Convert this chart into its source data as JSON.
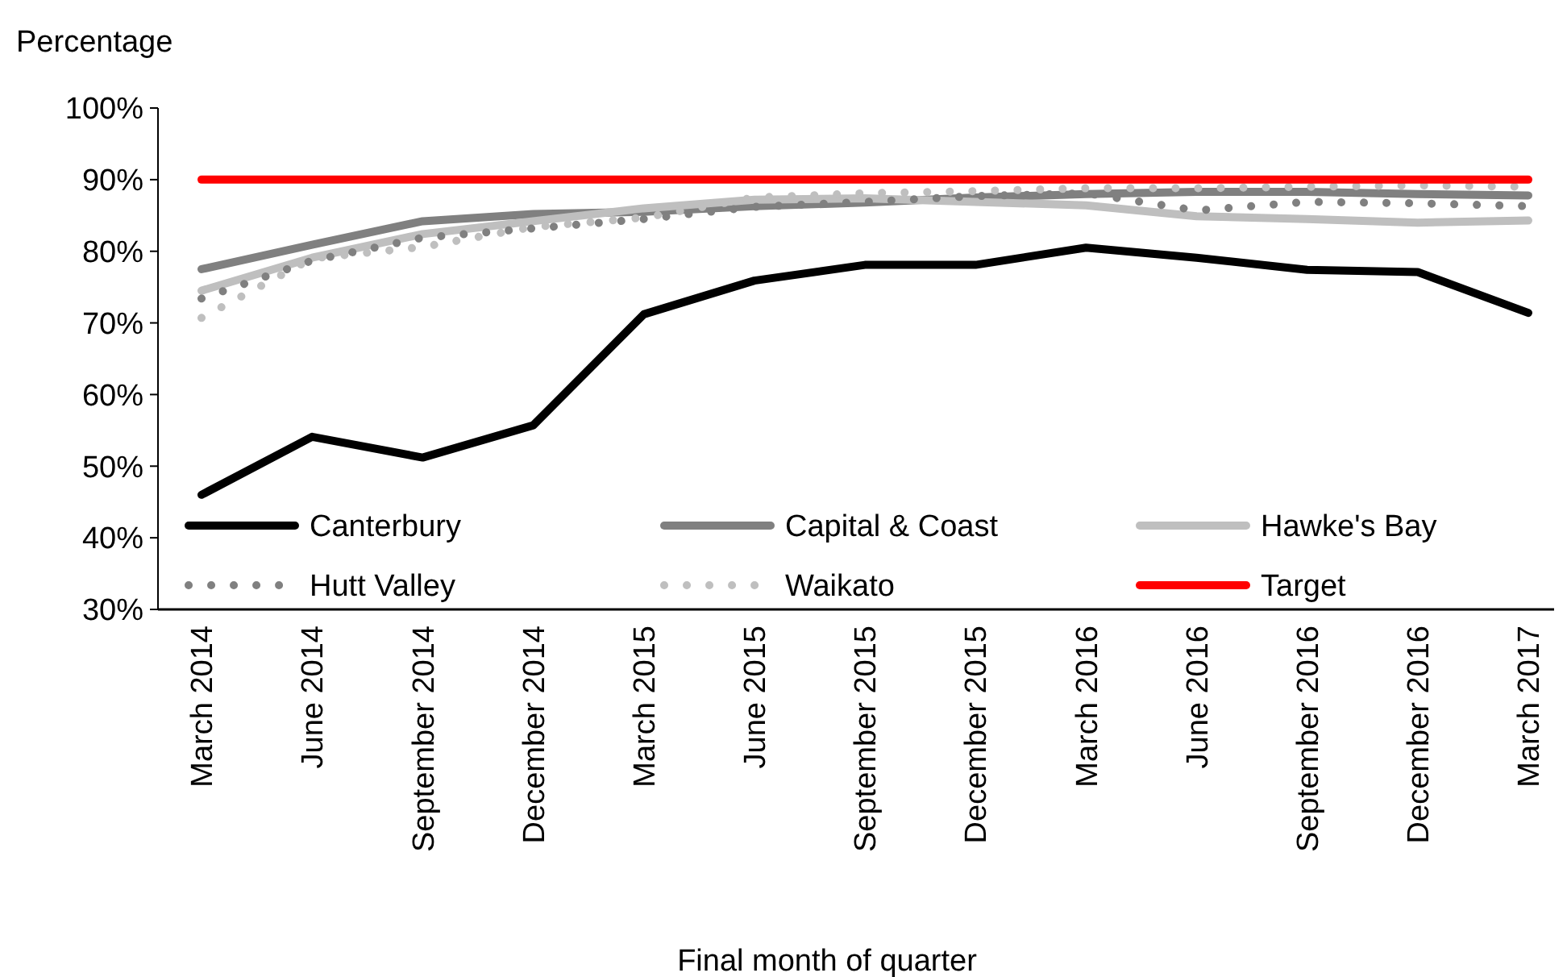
{
  "chart_data": {
    "type": "line",
    "ylabel": "Percentage",
    "xlabel": "Final month of quarter",
    "categories": [
      "March 2014",
      "June 2014",
      "September 2014",
      "December 2014",
      "March 2015",
      "June 2015",
      "September 2015",
      "December 2015",
      "March 2016",
      "June 2016",
      "September 2016",
      "December 2016",
      "March 2017"
    ],
    "series": [
      {
        "name": "Canterbury",
        "color": "#000000",
        "line_style": "solid",
        "values": [
          46,
          54.1,
          51.2,
          55.7,
          71.2,
          75.9,
          78.1,
          78.1,
          80.5,
          79.1,
          77.4,
          77.1,
          71.4
        ]
      },
      {
        "name": "Capital & Coast",
        "color": "#808080",
        "line_style": "solid",
        "values": [
          77.5,
          80.9,
          84.2,
          85.2,
          85.5,
          86.3,
          86.8,
          87.5,
          88,
          88.3,
          88.3,
          88,
          87.8
        ]
      },
      {
        "name": "Hawke's Bay",
        "color": "#bfbfbf",
        "line_style": "solid",
        "values": [
          74.5,
          79.1,
          82.4,
          84.2,
          86,
          87.2,
          87.4,
          86.9,
          86.4,
          84.9,
          84.5,
          84,
          84.3
        ]
      },
      {
        "name": "Hutt Valley",
        "color": "#808080",
        "line_style": "dotted",
        "values": [
          73.4,
          78.7,
          81.9,
          83.2,
          84.5,
          86.2,
          86.9,
          87.7,
          88.1,
          85.7,
          86.9,
          86.7,
          86.3
        ]
      },
      {
        "name": "Waikato",
        "color": "#bfbfbf",
        "line_style": "dotted",
        "values": [
          70.7,
          79,
          80.6,
          83.4,
          84.7,
          87.5,
          88.1,
          88.4,
          88.8,
          88.8,
          89,
          89.2,
          89
        ]
      },
      {
        "name": "Target",
        "color": "#ff0000",
        "line_style": "solid",
        "values": [
          90,
          90,
          90,
          90,
          90,
          90,
          90,
          90,
          90,
          90,
          90,
          90,
          90
        ]
      }
    ],
    "ylim": [
      30,
      100
    ],
    "yticks": [
      {
        "value": 30,
        "label": "30%"
      },
      {
        "value": 40,
        "label": "40%"
      },
      {
        "value": 50,
        "label": "50%"
      },
      {
        "value": 60,
        "label": "60%"
      },
      {
        "value": 70,
        "label": "70%"
      },
      {
        "value": 80,
        "label": "80%"
      },
      {
        "value": 90,
        "label": "90%"
      },
      {
        "value": 100,
        "label": "100%"
      }
    ],
    "legend": "bottom"
  }
}
